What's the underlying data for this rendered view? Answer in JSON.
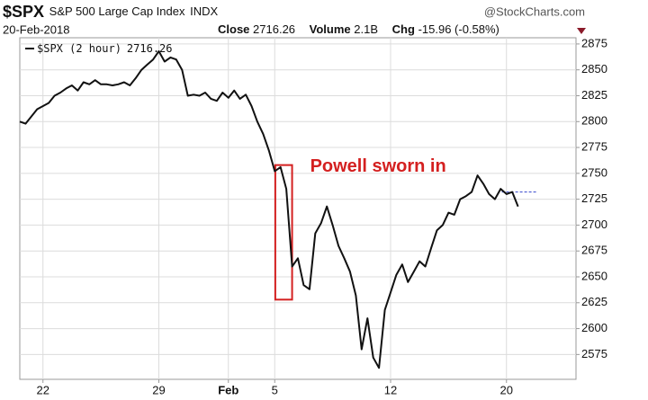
{
  "chart_data": {
    "type": "line",
    "header": {
      "symbol": "$SPX",
      "name": "S&P 500 Large Cap Index",
      "exchange": "INDX",
      "source": "@StockCharts.com",
      "date": "20-Feb-2018",
      "close_label": "Close",
      "close": "2716.26",
      "volume_label": "Volume",
      "volume": "2.1B",
      "chg_label": "Chg",
      "chg": "-15.96 (-0.58%)"
    },
    "annotation": {
      "text": "Powell sworn in",
      "color": "#d42020",
      "x": [
        44.1,
        47.0
      ],
      "y": [
        2628,
        2758
      ]
    },
    "reference_line": {
      "value": 2732,
      "x": [
        83.2,
        89.4
      ],
      "color": "#3344cc"
    },
    "series": [
      {
        "name": "$SPX (2 hour)",
        "color": "#111111",
        "x": [
          0,
          1,
          2,
          3,
          4,
          5,
          6,
          7,
          8,
          9,
          10,
          11,
          12,
          13,
          14,
          15,
          16,
          17,
          18,
          19,
          20,
          21,
          22,
          23,
          24,
          25,
          26,
          27,
          28,
          29,
          30,
          31,
          32,
          33,
          34,
          35,
          36,
          37,
          38,
          39,
          40,
          41,
          42,
          43,
          44,
          45,
          46,
          47,
          48,
          49,
          50,
          51,
          52,
          53,
          54,
          55,
          56,
          57,
          58,
          59,
          60,
          61,
          62,
          63,
          64,
          65,
          66,
          67,
          68,
          69,
          70,
          71,
          72,
          73,
          74,
          75,
          76,
          77,
          78,
          79,
          80,
          81,
          82,
          83,
          84,
          85,
          86
        ],
        "values": [
          2800,
          2798,
          2805,
          2812,
          2815,
          2818,
          2825,
          2828,
          2832,
          2835,
          2830,
          2838,
          2836,
          2840,
          2836,
          2836,
          2835,
          2836,
          2838,
          2835,
          2842,
          2850,
          2855,
          2860,
          2868,
          2858,
          2862,
          2860,
          2850,
          2825,
          2826,
          2825,
          2828,
          2822,
          2820,
          2828,
          2823,
          2830,
          2822,
          2826,
          2815,
          2800,
          2788,
          2772,
          2752,
          2756,
          2735,
          2660,
          2668,
          2642,
          2638,
          2692,
          2702,
          2718,
          2700,
          2680,
          2668,
          2655,
          2632,
          2580,
          2610,
          2572,
          2562,
          2618,
          2635,
          2652,
          2662,
          2645,
          2655,
          2665,
          2660,
          2678,
          2695,
          2700,
          2712,
          2710,
          2725,
          2728,
          2732,
          2748,
          2740,
          2730,
          2725,
          2735,
          2730,
          2732,
          2718
        ]
      }
    ],
    "xlim": [
      0,
      96
    ],
    "xticks": [
      {
        "value": 4,
        "label": "22"
      },
      {
        "value": 24,
        "label": "29"
      },
      {
        "value": 36,
        "label": "Feb"
      },
      {
        "value": 44,
        "label": "5"
      },
      {
        "value": 64,
        "label": "12"
      },
      {
        "value": 84,
        "label": "20"
      }
    ],
    "ylim": [
      2551,
      2881
    ],
    "yticks": [
      2575,
      2600,
      2625,
      2650,
      2675,
      2700,
      2725,
      2750,
      2775,
      2800,
      2825,
      2850,
      2875
    ],
    "grid": true
  }
}
